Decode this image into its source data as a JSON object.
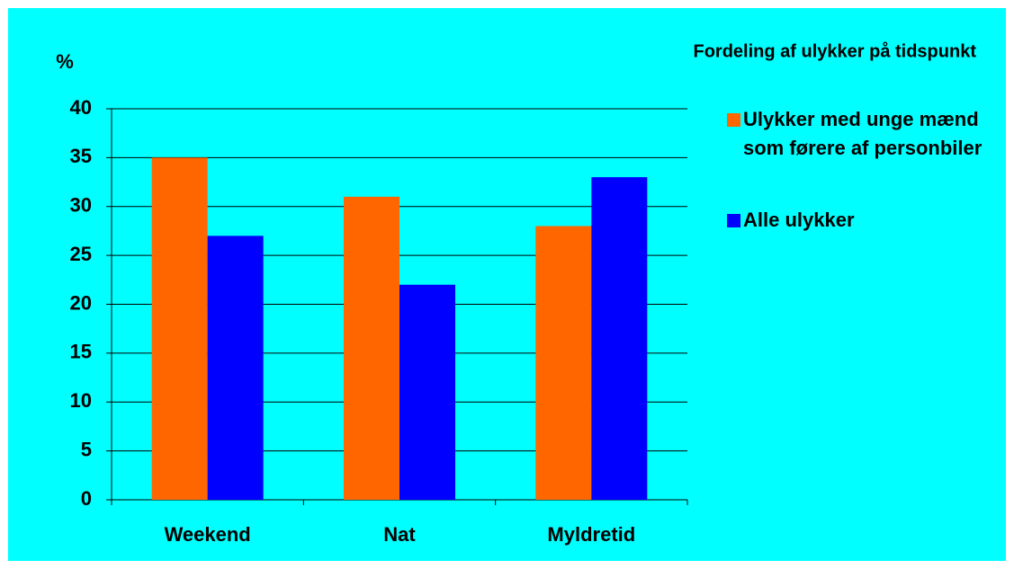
{
  "chart_data": {
    "type": "bar",
    "title": "Fordeling af ulykker på tidspunkt",
    "y_label": "%",
    "categories": [
      "Weekend",
      "Nat",
      "Myldretid"
    ],
    "series": [
      {
        "name": "Ulykker med unge mænd som førere af personbiler",
        "color": "#ff6600",
        "values": [
          35,
          31,
          28
        ]
      },
      {
        "name": "Alle ulykker",
        "color": "#0000ff",
        "values": [
          27,
          22,
          33
        ]
      }
    ],
    "ylim": [
      0,
      40
    ],
    "yticks": [
      0,
      5,
      10,
      15,
      20,
      25,
      30,
      35,
      40
    ],
    "grid": true,
    "legend": "right"
  }
}
